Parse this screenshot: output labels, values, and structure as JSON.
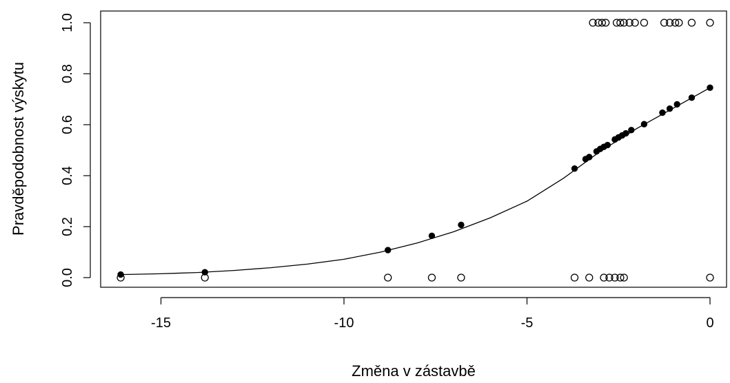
{
  "chart_data": {
    "type": "scatter",
    "title": "",
    "xlabel": "Změna v zástavbě",
    "ylabel": "Pravděpodobnost výskytu",
    "xlim": [
      -16.6,
      0.2
    ],
    "ylim": [
      -0.04,
      1.04
    ],
    "x_ticks": [
      -15,
      -10,
      -5,
      0
    ],
    "x_tick_labels": [
      "-15",
      "-10",
      "-5",
      "0"
    ],
    "y_ticks": [
      0.0,
      0.2,
      0.4,
      0.6,
      0.8,
      1.0
    ],
    "y_tick_labels": [
      "0.0",
      "0.2",
      "0.4",
      "0.6",
      "0.8",
      "1.0"
    ],
    "grid": false,
    "legend": "none",
    "series": [
      {
        "marker": "open-circle",
        "points": [
          [
            -16.1,
            0
          ],
          [
            -13.8,
            0
          ],
          [
            -8.8,
            0
          ],
          [
            -7.6,
            0
          ],
          [
            -6.8,
            0
          ],
          [
            -3.7,
            0
          ],
          [
            -3.3,
            0
          ],
          [
            -2.9,
            0
          ],
          [
            -2.75,
            0
          ],
          [
            -2.6,
            0
          ],
          [
            -2.45,
            0
          ],
          [
            -2.35,
            0
          ],
          [
            0,
            0
          ],
          [
            -3.2,
            1
          ],
          [
            -3.05,
            1
          ],
          [
            -2.95,
            1
          ],
          [
            -2.85,
            1
          ],
          [
            -2.55,
            1
          ],
          [
            -2.45,
            1
          ],
          [
            -2.35,
            1
          ],
          [
            -2.2,
            1
          ],
          [
            -2.05,
            1
          ],
          [
            -1.8,
            1
          ],
          [
            -1.25,
            1
          ],
          [
            -1.1,
            1
          ],
          [
            -0.95,
            1
          ],
          [
            -0.85,
            1
          ],
          [
            -0.5,
            1
          ],
          [
            0,
            1
          ]
        ]
      },
      {
        "marker": "filled-circle",
        "points": [
          [
            -16.1,
            0.012
          ],
          [
            -13.8,
            0.021
          ],
          [
            -8.8,
            0.108
          ],
          [
            -7.6,
            0.164
          ],
          [
            -6.8,
            0.207
          ],
          [
            -3.7,
            0.428
          ],
          [
            -3.4,
            0.465
          ],
          [
            -3.3,
            0.473
          ],
          [
            -3.1,
            0.495
          ],
          [
            -3.0,
            0.505
          ],
          [
            -2.9,
            0.513
          ],
          [
            -2.8,
            0.52
          ],
          [
            -2.6,
            0.542
          ],
          [
            -2.5,
            0.55
          ],
          [
            -2.4,
            0.558
          ],
          [
            -2.3,
            0.566
          ],
          [
            -2.15,
            0.579
          ],
          [
            -1.8,
            0.602
          ],
          [
            -1.3,
            0.647
          ],
          [
            -1.1,
            0.663
          ],
          [
            -0.9,
            0.68
          ],
          [
            -0.5,
            0.706
          ],
          [
            0,
            0.745
          ]
        ]
      },
      {
        "type": "line",
        "x": [
          -16.1,
          -15,
          -14,
          -13,
          -12,
          -11,
          -10,
          -9,
          -8,
          -7,
          -6,
          -5,
          -4,
          -3,
          -2,
          -1,
          0
        ],
        "y": [
          0.012,
          0.015,
          0.02,
          0.028,
          0.039,
          0.053,
          0.072,
          0.1,
          0.136,
          0.18,
          0.235,
          0.3,
          0.39,
          0.495,
          0.585,
          0.665,
          0.745
        ]
      }
    ]
  }
}
